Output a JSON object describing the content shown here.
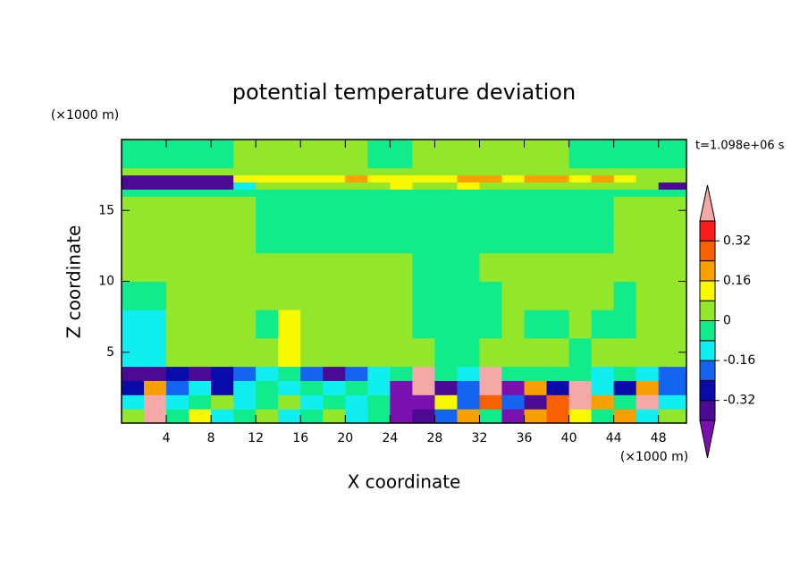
{
  "chart_data": {
    "type": "contour",
    "title": "potential temperature deviation",
    "x_label": "X coordinate",
    "y_label": "Z coordinate",
    "x_unit": "(×1000 m)",
    "y_unit": "(×1000 m)",
    "time_label": "t=1.098e+06 s",
    "xlim": [
      0,
      50.5
    ],
    "ylim": [
      0,
      20
    ],
    "xticks": [
      4,
      8,
      12,
      16,
      20,
      24,
      28,
      32,
      36,
      40,
      44,
      48
    ],
    "yticks": [
      5,
      10,
      15
    ],
    "x": [
      0,
      2,
      4,
      6,
      8,
      10,
      12,
      14,
      16,
      18,
      20,
      22,
      24,
      26,
      28,
      30,
      32,
      34,
      36,
      38,
      40,
      42,
      44,
      46,
      48,
      50.5
    ],
    "z": [
      0,
      1,
      2,
      3,
      4,
      6,
      8,
      10,
      12,
      14,
      16,
      16.5,
      17,
      17.5,
      18,
      20
    ],
    "values": [
      [
        0.04,
        0.45,
        -0.04,
        0.12,
        -0.12,
        -0.04,
        0.04,
        -0.12,
        -0.04,
        0.04,
        -0.12,
        -0.04,
        -0.45,
        -0.36,
        -0.2,
        0.2,
        -0.04,
        -0.45,
        0.2,
        0.28,
        0.12,
        -0.04,
        0.2,
        -0.12,
        0.04
      ],
      [
        -0.12,
        0.45,
        -0.12,
        -0.04,
        0.04,
        -0.12,
        -0.04,
        0.04,
        -0.12,
        -0.04,
        -0.12,
        -0.04,
        -0.45,
        -0.45,
        0.12,
        -0.2,
        0.28,
        -0.2,
        -0.36,
        0.28,
        0.45,
        0.2,
        -0.04,
        0.45,
        -0.12
      ],
      [
        -0.28,
        0.2,
        -0.2,
        -0.12,
        -0.28,
        -0.12,
        -0.04,
        -0.12,
        -0.04,
        -0.12,
        -0.04,
        -0.12,
        -0.45,
        0.45,
        -0.36,
        -0.2,
        0.45,
        -0.45,
        0.2,
        -0.28,
        0.45,
        -0.12,
        -0.28,
        0.2,
        -0.2
      ],
      [
        -0.36,
        -0.36,
        -0.28,
        -0.36,
        -0.28,
        -0.2,
        -0.12,
        -0.04,
        -0.2,
        -0.36,
        -0.2,
        -0.12,
        -0.04,
        0.45,
        -0.04,
        -0.12,
        0.45,
        -0.04,
        -0.04,
        -0.04,
        -0.04,
        -0.12,
        -0.04,
        -0.12,
        -0.2
      ],
      [
        -0.12,
        -0.12,
        0.04,
        0.04,
        0.04,
        0.04,
        0.04,
        0.12,
        0.04,
        0.04,
        0.04,
        0.04,
        0.04,
        0.04,
        -0.04,
        -0.04,
        0.04,
        0.04,
        0.04,
        0.04,
        -0.04,
        0.04,
        0.04,
        0.04,
        0.04
      ],
      [
        -0.12,
        -0.12,
        0.04,
        0.04,
        0.04,
        0.04,
        -0.04,
        0.12,
        0.04,
        0.04,
        0.04,
        0.04,
        0.04,
        -0.04,
        -0.04,
        -0.04,
        -0.04,
        0.04,
        -0.04,
        -0.04,
        0.04,
        -0.04,
        -0.04,
        0.04,
        0.04
      ],
      [
        -0.04,
        -0.04,
        0.04,
        0.04,
        0.04,
        0.04,
        0.04,
        0.04,
        0.04,
        0.04,
        0.04,
        0.04,
        0.04,
        -0.04,
        -0.04,
        -0.04,
        -0.04,
        0.04,
        0.04,
        0.04,
        0.04,
        0.04,
        -0.04,
        0.04,
        0.04
      ],
      [
        0.04,
        0.04,
        0.04,
        0.04,
        0.04,
        0.04,
        0.04,
        0.04,
        0.04,
        0.04,
        0.04,
        0.04,
        0.04,
        -0.04,
        -0.04,
        -0.04,
        0.04,
        0.04,
        0.04,
        0.04,
        0.04,
        0.04,
        0.04,
        0.04,
        0.04
      ],
      [
        0.04,
        0.04,
        0.04,
        0.04,
        0.04,
        0.04,
        -0.04,
        -0.04,
        -0.04,
        -0.04,
        -0.04,
        -0.04,
        -0.04,
        -0.04,
        -0.04,
        -0.04,
        -0.04,
        -0.04,
        -0.04,
        -0.04,
        -0.04,
        -0.04,
        0.04,
        0.04,
        0.04
      ],
      [
        0.04,
        0.04,
        0.04,
        0.04,
        0.04,
        0.04,
        -0.04,
        -0.04,
        -0.04,
        -0.04,
        -0.04,
        -0.04,
        -0.04,
        -0.04,
        -0.04,
        -0.04,
        -0.04,
        -0.04,
        -0.04,
        -0.04,
        -0.04,
        -0.04,
        0.04,
        0.04,
        0.04
      ],
      [
        -0.04,
        -0.04,
        -0.04,
        -0.04,
        -0.04,
        -0.04,
        -0.04,
        -0.04,
        -0.04,
        -0.04,
        -0.04,
        -0.04,
        -0.04,
        -0.04,
        -0.04,
        -0.04,
        -0.04,
        -0.04,
        -0.04,
        -0.04,
        -0.04,
        -0.04,
        -0.04,
        -0.04,
        -0.04
      ],
      [
        -0.36,
        -0.36,
        -0.36,
        -0.36,
        -0.36,
        -0.12,
        0.04,
        0.04,
        0.04,
        0.04,
        0.04,
        0.04,
        0.12,
        0.04,
        0.04,
        0.12,
        0.04,
        0.04,
        0.04,
        0.04,
        0.04,
        0.04,
        0.04,
        0.04,
        -0.36
      ],
      [
        -0.36,
        -0.36,
        -0.36,
        -0.36,
        -0.36,
        0.12,
        0.12,
        0.12,
        0.12,
        0.12,
        0.2,
        0.12,
        0.12,
        0.12,
        0.12,
        0.2,
        0.2,
        0.12,
        0.2,
        0.2,
        0.12,
        0.2,
        0.12,
        0.04,
        0.04
      ],
      [
        0.04,
        0.04,
        0.04,
        0.04,
        0.04,
        0.04,
        0.04,
        0.04,
        0.04,
        0.04,
        0.04,
        0.04,
        0.04,
        0.04,
        0.04,
        0.04,
        0.04,
        0.04,
        0.04,
        0.04,
        0.04,
        0.04,
        0.04,
        0.04,
        0.04
      ],
      [
        -0.04,
        -0.04,
        -0.04,
        -0.04,
        -0.04,
        0.04,
        0.04,
        0.04,
        0.04,
        0.04,
        0.04,
        -0.04,
        -0.04,
        0.04,
        0.04,
        0.04,
        0.04,
        0.04,
        0.04,
        0.04,
        -0.04,
        -0.04,
        -0.04,
        -0.04,
        -0.04
      ]
    ],
    "colorbar": {
      "levels": [
        -0.4,
        -0.32,
        -0.24,
        -0.16,
        -0.08,
        0,
        0.08,
        0.16,
        0.24,
        0.32,
        0.4
      ],
      "colors": [
        "#7a10b0",
        "#4a0a94",
        "#0a0aa8",
        "#1464f0",
        "#10eef0",
        "#10ec8c",
        "#94e62a",
        "#f8f800",
        "#f8a000",
        "#f86000",
        "#f81e1e",
        "#f4a8a8"
      ],
      "ticks": [
        0.32,
        0.16,
        0,
        -0.16,
        -0.32
      ]
    }
  }
}
